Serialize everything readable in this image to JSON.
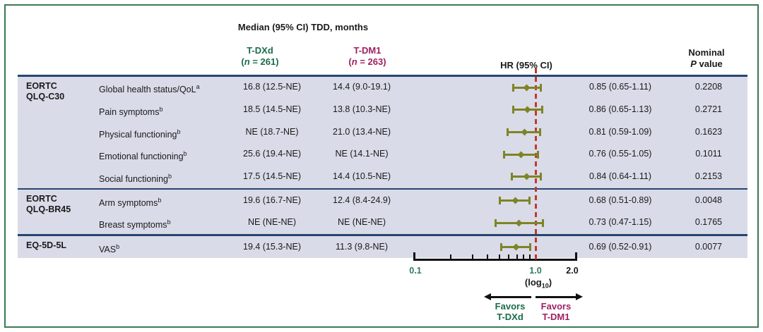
{
  "figure": {
    "title": "Median (95% CI) TDD, months",
    "col_tdxd_name": "T-DXd",
    "col_tdxd_n_open": "(",
    "col_tdxd_n_var": "n",
    "col_tdxd_n_rest": " = 261)",
    "col_tdm1_name": "T-DM1",
    "col_tdm1_n_open": "(",
    "col_tdm1_n_var": "n",
    "col_tdm1_n_rest": " = 263)",
    "col_hr": "HR (95% CI)",
    "col_p_line1": "Nominal",
    "col_p_italic": "P",
    "col_p_rest": " value",
    "favors_left_line1": "Favors",
    "favors_left_line2": "T-DXd",
    "favors_right_line1": "Favors",
    "favors_right_line2": "T-DM1"
  },
  "colors": {
    "tdxd_green": "#1a6c4c",
    "tdm1_magenta": "#9e2063",
    "axis_green": "#2f7d5c",
    "marker_olive": "#7e8425",
    "ref_red": "#c03a2b",
    "band_bg": "#d9dbe8",
    "rule_navy": "#26466f",
    "border_green": "#3c7a52"
  },
  "chart_data": {
    "type": "scatter",
    "subtype": "forest-plot",
    "title": "Median (95% CI) TDD, months",
    "x_scale": "log10",
    "xlim": [
      0.1,
      2.2
    ],
    "reference_line": 1.0,
    "axis": {
      "tick_labels": [
        "0.1",
        "1.0",
        "2.0"
      ],
      "tick_values": [
        0.1,
        1.0,
        2.0
      ],
      "minor_ticks": [
        0.2,
        0.3,
        0.4,
        0.5,
        0.6,
        0.7,
        0.8,
        0.9
      ],
      "label_pre": "(log",
      "label_sub": "10",
      "label_post": ")"
    },
    "groups": [
      {
        "instrument": [
          "EORTC",
          "QLQ-C30"
        ],
        "rows": [
          {
            "scale": "Global health status/QoL",
            "footnote": "a",
            "tdxd_median": "16.8 (12.5-NE)",
            "tdm1_median": "14.4 (9.0-19.1)",
            "hr": 0.85,
            "ci_low": 0.65,
            "ci_high": 1.11,
            "hr_text": "0.85 (0.65-1.11)",
            "p_value": "0.2208"
          },
          {
            "scale": "Pain symptoms",
            "footnote": "b",
            "tdxd_median": "18.5 (14.5-NE)",
            "tdm1_median": "13.8 (10.3-NE)",
            "hr": 0.86,
            "ci_low": 0.65,
            "ci_high": 1.13,
            "hr_text": "0.86 (0.65-1.13)",
            "p_value": "0.2721"
          },
          {
            "scale": "Physical functioning",
            "footnote": "b",
            "tdxd_median": "NE (18.7-NE)",
            "tdm1_median": "21.0 (13.4-NE)",
            "hr": 0.81,
            "ci_low": 0.59,
            "ci_high": 1.09,
            "hr_text": "0.81 (0.59-1.09)",
            "p_value": "0.1623"
          },
          {
            "scale": "Emotional functioning",
            "footnote": "b",
            "tdxd_median": "25.6 (19.4-NE)",
            "tdm1_median": "NE (14.1-NE)",
            "hr": 0.76,
            "ci_low": 0.55,
            "ci_high": 1.05,
            "hr_text": "0.76 (0.55-1.05)",
            "p_value": "0.1011"
          },
          {
            "scale": "Social functioning",
            "footnote": "b",
            "tdxd_median": "17.5 (14.5-NE)",
            "tdm1_median": "14.4 (10.5-NE)",
            "hr": 0.84,
            "ci_low": 0.64,
            "ci_high": 1.11,
            "hr_text": "0.84 (0.64-1.11)",
            "p_value": "0.2153"
          }
        ]
      },
      {
        "instrument": [
          "EORTC",
          "QLQ-BR45"
        ],
        "rows": [
          {
            "scale": "Arm symptoms",
            "footnote": "b",
            "tdxd_median": "19.6 (16.7-NE)",
            "tdm1_median": "12.4 (8.4-24.9)",
            "hr": 0.68,
            "ci_low": 0.51,
            "ci_high": 0.89,
            "hr_text": "0.68 (0.51-0.89)",
            "p_value": "0.0048"
          },
          {
            "scale": "Breast symptoms",
            "footnote": "b",
            "tdxd_median": "NE (NE-NE)",
            "tdm1_median": "NE (NE-NE)",
            "hr": 0.73,
            "ci_low": 0.47,
            "ci_high": 1.15,
            "hr_text": "0.73 (0.47-1.15)",
            "p_value": "0.1765"
          }
        ]
      },
      {
        "instrument": [
          "EQ-5D-5L"
        ],
        "rows": [
          {
            "scale": "VAS",
            "footnote": "b",
            "tdxd_median": "19.4 (15.3-NE)",
            "tdm1_median": "11.3 (9.8-NE)",
            "hr": 0.69,
            "ci_low": 0.52,
            "ci_high": 0.91,
            "hr_text": "0.69 (0.52-0.91)",
            "p_value": "0.0077"
          }
        ]
      }
    ]
  }
}
